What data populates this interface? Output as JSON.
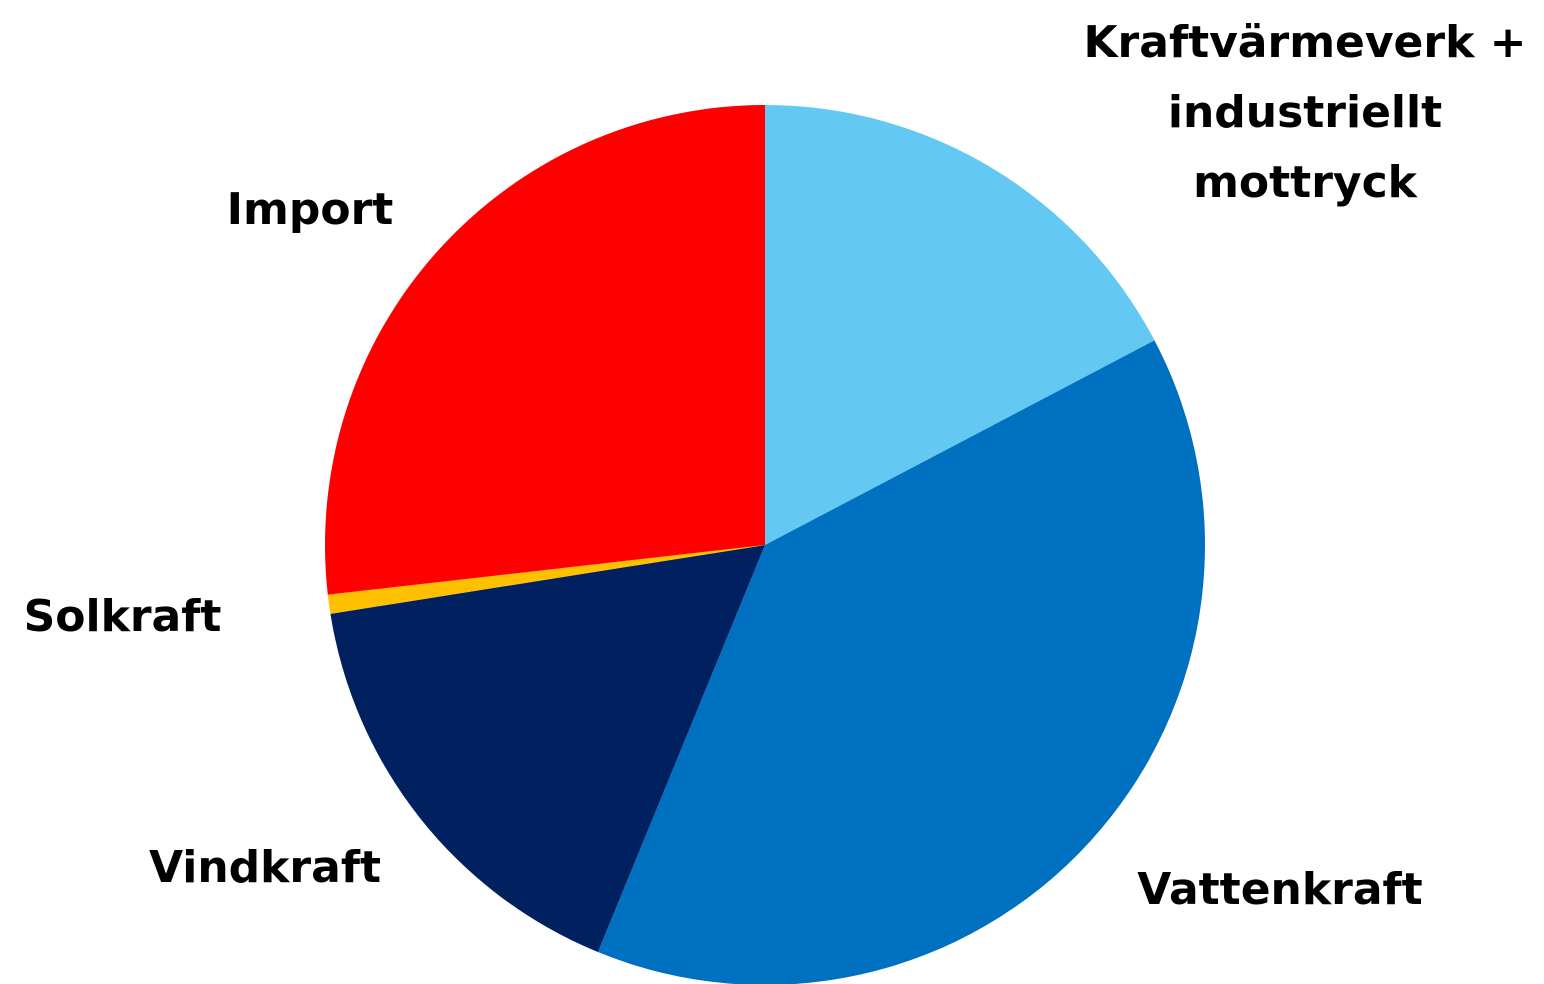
{
  "chart_data": {
    "type": "pie",
    "categories": [
      "Kraftvärmeverk + industriellt mottryck",
      "Vattenkraft",
      "Vindkraft",
      "Solkraft",
      "Import"
    ],
    "values": [
      17.3,
      38.9,
      16.3,
      0.7,
      26.8
    ],
    "colors": [
      "#63c9f2",
      "#0070c0",
      "#002060",
      "#ffc000",
      "#ff0000"
    ]
  }
}
